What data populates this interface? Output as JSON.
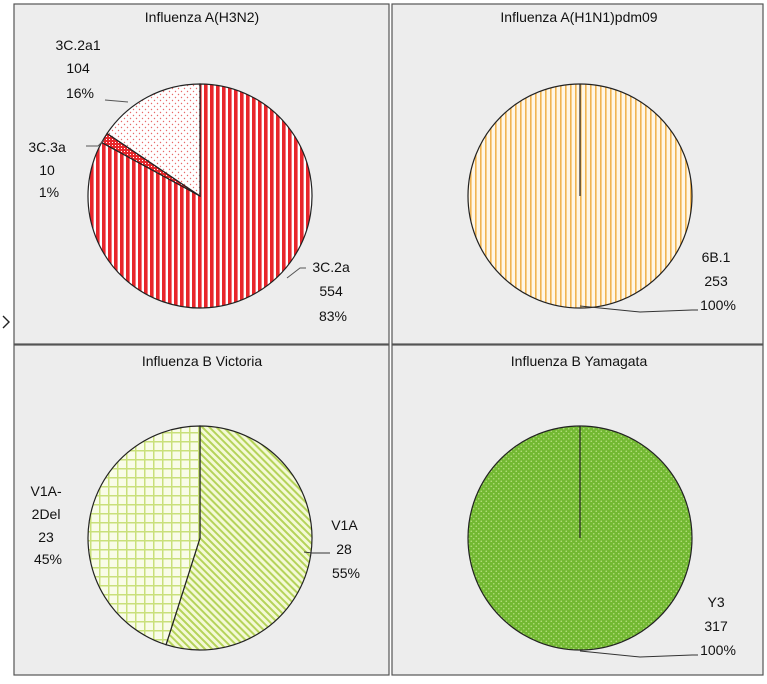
{
  "colors": {
    "panel_bg": "#ededed",
    "panel_border": "#555555",
    "h3n2_red": "#e8262b",
    "h3n2_light": "#fde2e2",
    "h1n1_orange": "#f0b450",
    "h1n1_bg": "#fff6e4",
    "vic_green": "#b5d35a",
    "vic_bg": "#f9fce8",
    "yam_green": "#72b832",
    "yam_dot": "#b6df80"
  },
  "chart_data": [
    {
      "type": "pie",
      "title": "Influenza A(H3N2)",
      "slices": [
        {
          "label": "3C.2a",
          "value": 554,
          "percent": "83%",
          "pattern": "red-vertical"
        },
        {
          "label": "3C.3a",
          "value": 10,
          "percent": "1%",
          "pattern": "red-dots-dense"
        },
        {
          "label": "3C.2a1",
          "value": 104,
          "percent": "16%",
          "pattern": "red-dots-sparse"
        }
      ]
    },
    {
      "type": "pie",
      "title": "Influenza A(H1N1)pdm09",
      "slices": [
        {
          "label": "6B.1",
          "value": 253,
          "percent": "100%",
          "pattern": "orange-vertical"
        }
      ]
    },
    {
      "type": "pie",
      "title": "Influenza B Victoria",
      "slices": [
        {
          "label": "V1A",
          "value": 28,
          "percent": "55%",
          "pattern": "green-diagonal"
        },
        {
          "label": "V1A-2Del",
          "value": 23,
          "percent": "45%",
          "pattern": "green-grid"
        }
      ]
    },
    {
      "type": "pie",
      "title": "Influenza B Yamagata",
      "slices": [
        {
          "label": "Y3",
          "value": 317,
          "percent": "100%",
          "pattern": "green-dots"
        }
      ]
    }
  ]
}
